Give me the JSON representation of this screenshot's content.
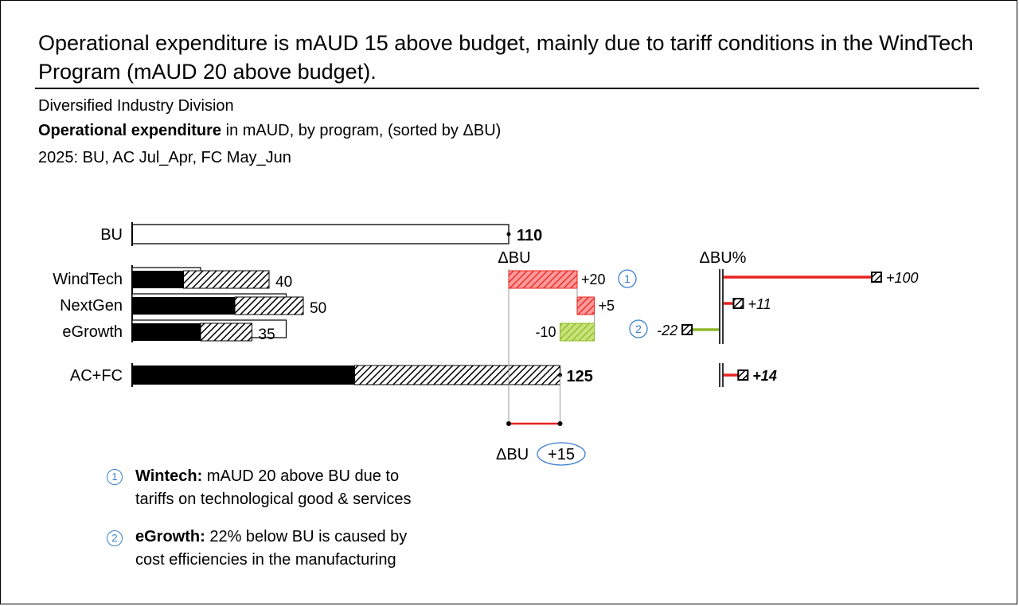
{
  "header": {
    "headline": "Operational expenditure is mAUD 15 above budget, mainly due to tariff conditions in the WindTech Program (mAUD 20 above budget).",
    "entity": "Diversified Industry Division",
    "measure_bold": "Operational expenditure",
    "measure_rest": " in mAUD, by program, (sorted by ΔBU)",
    "period": "2025: BU, AC Jul_Apr, FC May_Jun"
  },
  "chart_data": {
    "type": "bar",
    "unit": "mAUD",
    "scenarios": [
      "BU",
      "AC",
      "FC"
    ],
    "budget": {
      "label": "BU",
      "value": 110,
      "value_label": "110"
    },
    "categories": [
      "WindTech",
      "NextGen",
      "eGrowth"
    ],
    "series": [
      {
        "name": "AC",
        "values": [
          15,
          30,
          20
        ]
      },
      {
        "name": "FC",
        "values": [
          25,
          20,
          15
        ]
      },
      {
        "name": "BU",
        "values": [
          20,
          45,
          45
        ]
      }
    ],
    "totals": {
      "label": "AC+FC",
      "ac": 65,
      "fc": 60,
      "total": 125,
      "total_label": "125"
    },
    "value_labels": [
      "40",
      "50",
      "35"
    ],
    "delta_bu": {
      "title": "ΔBU",
      "values": [
        20,
        5,
        -10
      ],
      "labels": [
        "+20",
        "+5",
        "-10"
      ],
      "total": 15,
      "total_label": "+15"
    },
    "delta_bu_pct": {
      "title": "ΔBU%",
      "values": [
        100,
        11,
        -22
      ],
      "labels": [
        "+100",
        "+11",
        "-22"
      ],
      "total": 14,
      "total_label": "+14"
    },
    "markers": [
      {
        "number": "1",
        "category": "WindTech"
      },
      {
        "number": "2",
        "category": "eGrowth"
      }
    ],
    "colors": {
      "positive": "#e8231f",
      "negative": "#8db82a",
      "positive_fill": "#ff9a9a",
      "negative_fill": "#c8e27a",
      "note": "#3a7fd0"
    }
  },
  "notes": [
    {
      "number": "1",
      "title": "Wintech:",
      "line1": " mAUD 20 above BU due to",
      "line2": "tariffs on technological good & services"
    },
    {
      "number": "2",
      "title": "eGrowth:",
      "line1": " 22% below BU is caused by",
      "line2": "cost efficiencies in the manufacturing"
    }
  ]
}
